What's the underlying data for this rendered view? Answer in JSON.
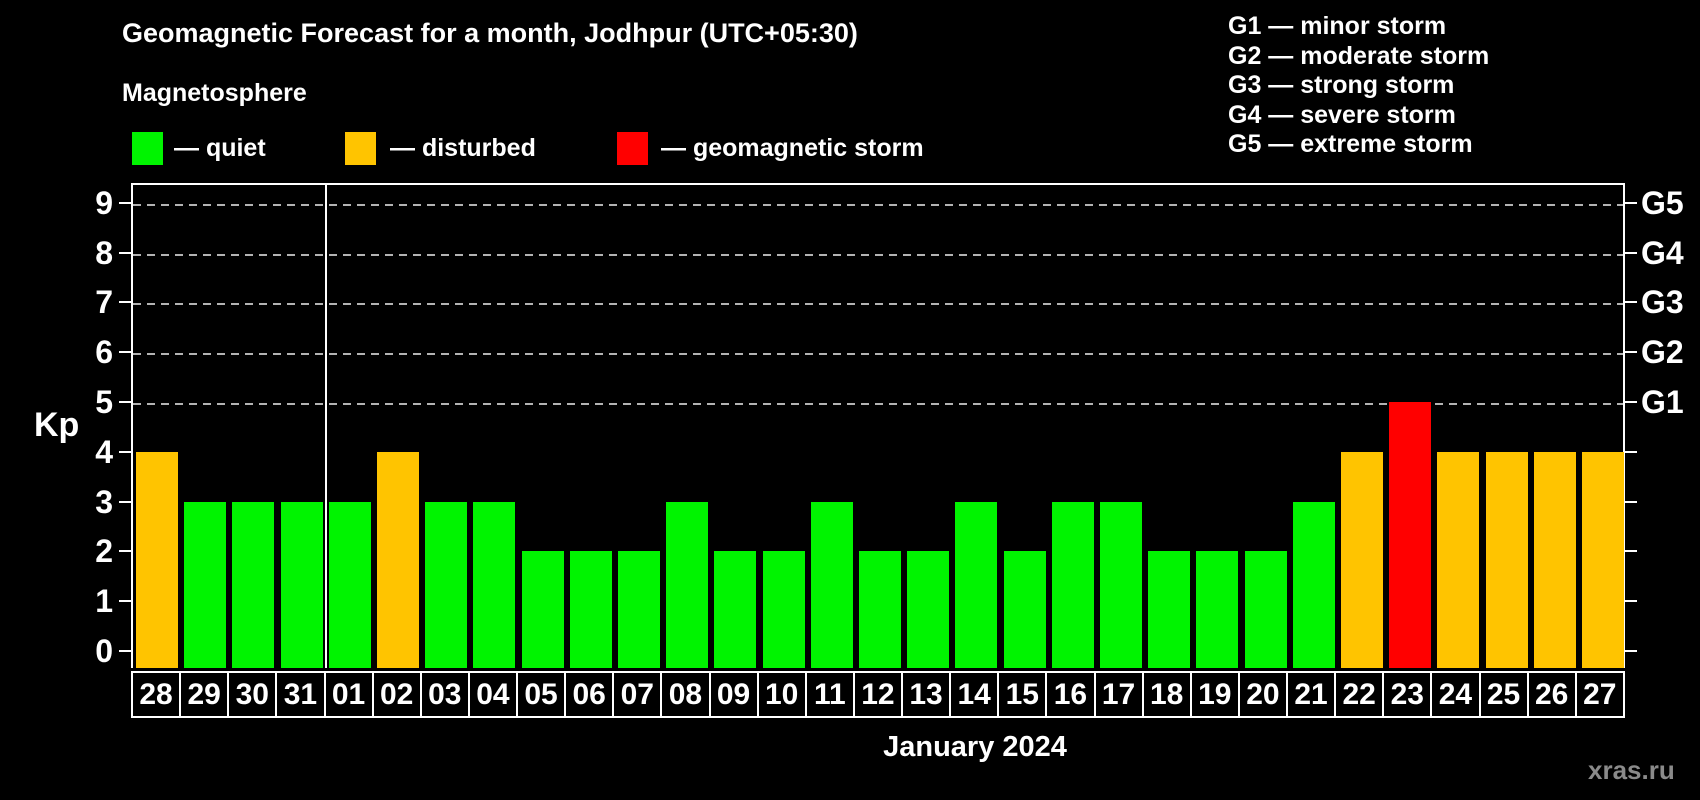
{
  "title": "Geomagnetic Forecast for a month, Jodhpur (UTC+05:30)",
  "subtitle": "Magnetosphere",
  "legend": {
    "items": [
      {
        "label": "— quiet",
        "color": "#00f400"
      },
      {
        "label": "— disturbed",
        "color": "#ffc400"
      },
      {
        "label": "— geomagnetic storm",
        "color": "#ff0000"
      }
    ]
  },
  "storm_legend": {
    "items": [
      "G1 — minor storm",
      "G2 — moderate storm",
      "G3 — strong storm",
      "G4 — severe storm",
      "G5 — extreme storm"
    ]
  },
  "chart_data": {
    "type": "bar",
    "title": "Geomagnetic Forecast for a month, Jodhpur (UTC+05:30)",
    "ylabel": "Kp",
    "xlabel": "January 2024",
    "ylim": [
      0,
      9
    ],
    "y_ticks": [
      0,
      1,
      2,
      3,
      4,
      5,
      6,
      7,
      8,
      9
    ],
    "grid_levels": [
      5,
      6,
      7,
      8,
      9
    ],
    "grid": "dashed, only at storm levels G1–G5",
    "legend_position": "top",
    "right_axis_labels": [
      {
        "label": "G1",
        "kp": 5
      },
      {
        "label": "G2",
        "kp": 6
      },
      {
        "label": "G3",
        "kp": 7
      },
      {
        "label": "G4",
        "kp": 8
      },
      {
        "label": "G5",
        "kp": 9
      }
    ],
    "categories": [
      "28",
      "29",
      "30",
      "31",
      "01",
      "02",
      "03",
      "04",
      "05",
      "06",
      "07",
      "08",
      "09",
      "10",
      "11",
      "12",
      "13",
      "14",
      "15",
      "16",
      "17",
      "18",
      "19",
      "20",
      "21",
      "22",
      "23",
      "24",
      "25",
      "26",
      "27"
    ],
    "values": [
      4,
      3,
      3,
      3,
      3,
      4,
      3,
      3,
      2,
      2,
      2,
      3,
      2,
      2,
      3,
      2,
      2,
      3,
      2,
      3,
      3,
      2,
      2,
      2,
      3,
      4,
      5,
      4,
      4,
      4,
      4
    ],
    "status_colors": {
      "quiet": "#00f400",
      "disturbed": "#ffc400",
      "storm": "#ff0000"
    },
    "color_rule": "kp<=3 quiet, kp==4 disturbed, kp>=5 storm",
    "month_separator_after_index": 3
  },
  "footer": {
    "xaxis_title": "January 2024",
    "watermark": "xras.ru"
  }
}
